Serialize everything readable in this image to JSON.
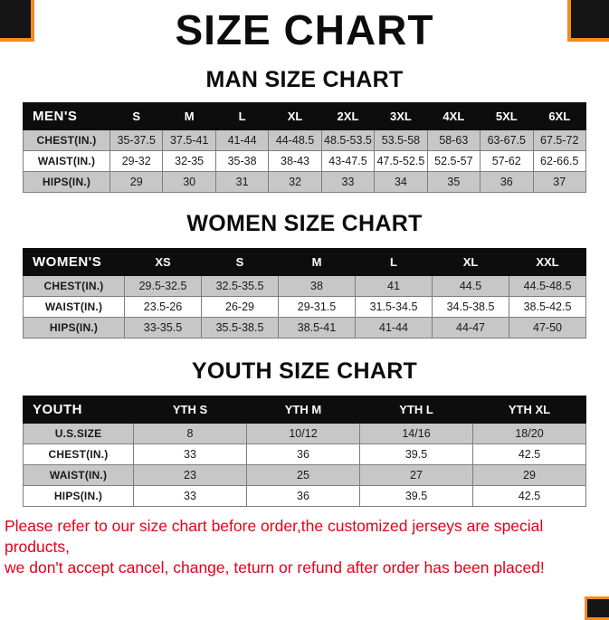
{
  "title": "SIZE CHART",
  "sections": [
    {
      "heading": "MAN SIZE CHART",
      "table": {
        "header": [
          "MEN'S",
          "S",
          "M",
          "L",
          "XL",
          "2XL",
          "3XL",
          "4XL",
          "5XL",
          "6XL"
        ],
        "rows": [
          [
            "CHEST(IN.)",
            "35-37.5",
            "37.5-41",
            "41-44",
            "44-48.5",
            "48.5-53.5",
            "53.5-58",
            "58-63",
            "63-67.5",
            "67.5-72"
          ],
          [
            "WAIST(IN.)",
            "29-32",
            "32-35",
            "35-38",
            "38-43",
            "43-47.5",
            "47.5-52.5",
            "52.5-57",
            "57-62",
            "62-66.5"
          ],
          [
            "HIPS(IN.)",
            "29",
            "30",
            "31",
            "32",
            "33",
            "34",
            "35",
            "36",
            "37"
          ]
        ]
      }
    },
    {
      "heading": "WOMEN SIZE CHART",
      "table": {
        "header": [
          "WOMEN'S",
          "XS",
          "S",
          "M",
          "L",
          "XL",
          "XXL"
        ],
        "rows": [
          [
            "CHEST(IN.)",
            "29.5-32.5",
            "32.5-35.5",
            "38",
            "41",
            "44.5",
            "44.5-48.5"
          ],
          [
            "WAIST(IN.)",
            "23.5-26",
            "26-29",
            "29-31.5",
            "31.5-34.5",
            "34.5-38.5",
            "38.5-42.5"
          ],
          [
            "HIPS(IN.)",
            "33-35.5",
            "35.5-38.5",
            "38.5-41",
            "41-44",
            "44-47",
            "47-50"
          ]
        ]
      }
    },
    {
      "heading": "YOUTH SIZE CHART",
      "table": {
        "header": [
          "YOUTH",
          "YTH S",
          "YTH M",
          "YTH L",
          "YTH XL"
        ],
        "rows": [
          [
            "U.S.SIZE",
            "8",
            "10/12",
            "14/16",
            "18/20"
          ],
          [
            "CHEST(IN.)",
            "33",
            "36",
            "39.5",
            "42.5"
          ],
          [
            "WAIST(IN.)",
            "23",
            "25",
            "27",
            "29"
          ],
          [
            "HIPS(IN.)",
            "33",
            "36",
            "39.5",
            "42.5"
          ]
        ]
      }
    }
  ],
  "footer": {
    "line1": "Please refer to our size chart before order,the customized jerseys are special products,",
    "line2": "we don't accept cancel, change, teturn or refund after order has been placed!"
  },
  "colors": {
    "accent": "#f28b1f",
    "footer_text": "#e60019",
    "header_bg": "#0d0d0d",
    "row_alt": "#c7c7c7"
  }
}
